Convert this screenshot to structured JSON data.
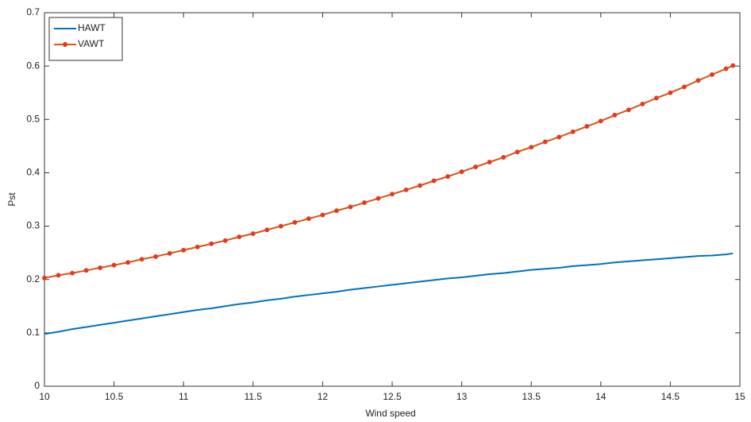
{
  "chart_data": {
    "type": "line",
    "xlabel": "Wind speed",
    "ylabel": "Pst",
    "x": [
      10.0,
      10.1,
      10.2,
      10.3,
      10.4,
      10.5,
      10.6,
      10.7,
      10.8,
      10.9,
      11.0,
      11.1,
      11.2,
      11.3,
      11.4,
      11.5,
      11.6,
      11.7,
      11.8,
      11.9,
      12.0,
      12.1,
      12.2,
      12.3,
      12.4,
      12.5,
      12.6,
      12.7,
      12.8,
      12.9,
      13.0,
      13.1,
      13.2,
      13.3,
      13.4,
      13.5,
      13.6,
      13.7,
      13.8,
      13.9,
      14.0,
      14.1,
      14.2,
      14.3,
      14.4,
      14.5,
      14.6,
      14.7,
      14.8,
      14.9,
      14.95
    ],
    "series": [
      {
        "name": "HAWT",
        "color": "#0072bd",
        "marker": false,
        "values": [
          0.098,
          0.102,
          0.107,
          0.111,
          0.115,
          0.119,
          0.123,
          0.127,
          0.131,
          0.135,
          0.139,
          0.143,
          0.146,
          0.15,
          0.154,
          0.157,
          0.161,
          0.164,
          0.168,
          0.171,
          0.174,
          0.177,
          0.181,
          0.184,
          0.187,
          0.19,
          0.193,
          0.196,
          0.199,
          0.202,
          0.204,
          0.207,
          0.21,
          0.212,
          0.215,
          0.218,
          0.22,
          0.222,
          0.225,
          0.227,
          0.229,
          0.232,
          0.234,
          0.236,
          0.238,
          0.24,
          0.242,
          0.244,
          0.245,
          0.247,
          0.249
        ]
      },
      {
        "name": "VAWT",
        "color": "#d95319",
        "marker": true,
        "values": [
          0.203,
          0.208,
          0.212,
          0.217,
          0.222,
          0.227,
          0.232,
          0.238,
          0.243,
          0.249,
          0.255,
          0.261,
          0.267,
          0.273,
          0.28,
          0.286,
          0.293,
          0.3,
          0.307,
          0.314,
          0.321,
          0.329,
          0.336,
          0.344,
          0.352,
          0.36,
          0.368,
          0.376,
          0.385,
          0.393,
          0.402,
          0.411,
          0.42,
          0.429,
          0.439,
          0.448,
          0.458,
          0.467,
          0.477,
          0.487,
          0.497,
          0.508,
          0.518,
          0.529,
          0.54,
          0.55,
          0.561,
          0.573,
          0.584,
          0.595,
          0.601
        ]
      }
    ],
    "xlim": [
      10,
      15
    ],
    "xticks": [
      10,
      10.5,
      11,
      11.5,
      12,
      12.5,
      13,
      13.5,
      14,
      14.5,
      15
    ],
    "ylim": [
      0,
      0.7
    ],
    "yticks": [
      0,
      0.1,
      0.2,
      0.3,
      0.4,
      0.5,
      0.6,
      0.7
    ],
    "legend": "upper left",
    "grid": false
  }
}
